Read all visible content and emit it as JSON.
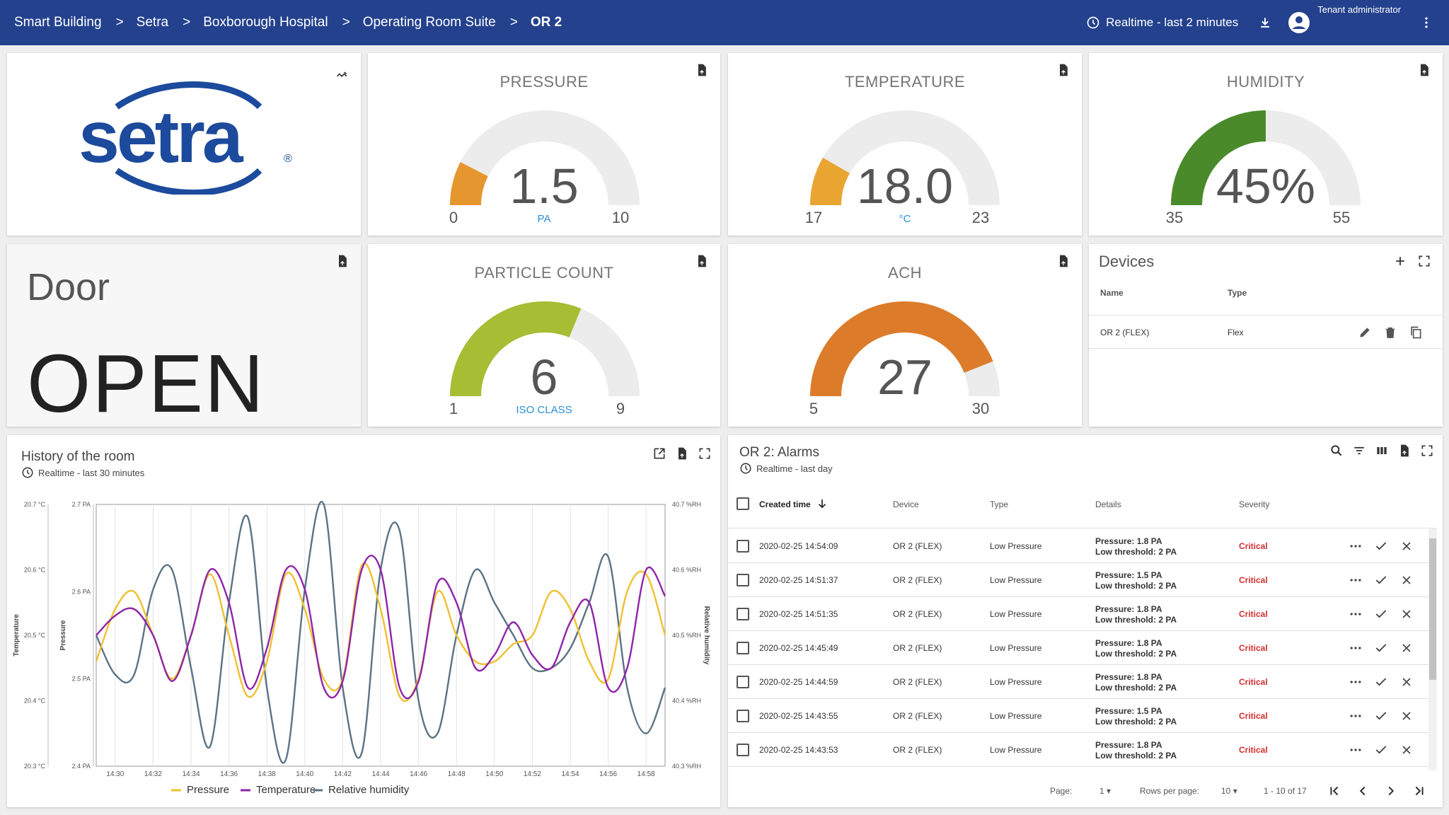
{
  "breadcrumbs": [
    "Smart Building",
    "Setra",
    "Boxborough Hospital",
    "Operating Room Suite",
    "OR 2"
  ],
  "topbar": {
    "realtime_label": "Realtime - last 2 minutes",
    "user_label": "Tenant administrator"
  },
  "logo": {
    "text": "setra",
    "mark": "®"
  },
  "gauges": {
    "pressure": {
      "title": "PRESSURE",
      "value": "1.5",
      "unit": "PA",
      "min": "0",
      "max": "10",
      "fraction": 0.15,
      "color": "#e6962e"
    },
    "temperature": {
      "title": "TEMPERATURE",
      "value": "18.0",
      "unit": "°C",
      "min": "17",
      "max": "23",
      "fraction": 0.167,
      "color": "#e9a532"
    },
    "humidity": {
      "title": "HUMIDITY",
      "value": "45%",
      "unit": "",
      "min": "35",
      "max": "55",
      "fraction": 0.5,
      "color": "#4a8a2a"
    },
    "particle": {
      "title": "PARTICLE COUNT",
      "value": "6",
      "unit": "ISO CLASS",
      "min": "1",
      "max": "9",
      "fraction": 0.625,
      "color": "#a7bd34"
    },
    "ach": {
      "title": "ACH",
      "value": "27",
      "unit": "",
      "min": "5",
      "max": "30",
      "fraction": 0.88,
      "color": "#dc7c2a"
    }
  },
  "door": {
    "label": "Door",
    "state": "OPEN"
  },
  "devices": {
    "title": "Devices",
    "col_name": "Name",
    "col_type": "Type",
    "rows": [
      {
        "name": "OR 2 (FLEX)",
        "type": "Flex"
      }
    ]
  },
  "history": {
    "title": "History of the room",
    "subtitle": "Realtime - last 30 minutes"
  },
  "chart_data": {
    "type": "line",
    "title": "History of the room",
    "x": [
      "14:29",
      "14:30",
      "14:31",
      "14:32",
      "14:33",
      "14:34",
      "14:35",
      "14:36",
      "14:37",
      "14:38",
      "14:39",
      "14:40",
      "14:41",
      "14:42",
      "14:43",
      "14:44",
      "14:45",
      "14:46",
      "14:47",
      "14:48",
      "14:49",
      "14:50",
      "14:51",
      "14:52",
      "14:53",
      "14:54",
      "14:55",
      "14:56",
      "14:57",
      "14:58",
      "14:59"
    ],
    "x_ticks": [
      "14:30",
      "14:32",
      "14:34",
      "14:36",
      "14:38",
      "14:40",
      "14:42",
      "14:44",
      "14:46",
      "14:48",
      "14:50",
      "14:52",
      "14:54",
      "14:56",
      "14:58"
    ],
    "series": [
      {
        "name": "Pressure",
        "axis": "Pressure",
        "color": "#f0c030",
        "values": [
          2.52,
          2.58,
          2.6,
          2.55,
          2.5,
          2.55,
          2.62,
          2.55,
          2.48,
          2.52,
          2.62,
          2.58,
          2.5,
          2.5,
          2.63,
          2.58,
          2.48,
          2.5,
          2.6,
          2.55,
          2.52,
          2.52,
          2.54,
          2.55,
          2.6,
          2.58,
          2.52,
          2.5,
          2.6,
          2.62,
          2.55
        ]
      },
      {
        "name": "Temperature",
        "axis": "Temperature",
        "color": "#8e24aa",
        "values": [
          20.5,
          20.53,
          20.54,
          20.5,
          20.43,
          20.5,
          20.6,
          20.55,
          20.42,
          20.48,
          20.6,
          20.57,
          20.42,
          20.43,
          20.6,
          20.6,
          20.42,
          20.43,
          20.58,
          20.55,
          20.45,
          20.47,
          20.52,
          20.47,
          20.45,
          20.52,
          20.55,
          20.42,
          20.45,
          20.6,
          20.56
        ]
      },
      {
        "name": "Relative humidity",
        "axis": "Relative humidity",
        "color": "#5b7384",
        "values": [
          40.5,
          40.44,
          40.44,
          40.57,
          40.6,
          40.45,
          40.33,
          40.55,
          40.68,
          40.42,
          40.31,
          40.57,
          40.7,
          40.42,
          40.32,
          40.6,
          40.66,
          40.4,
          40.35,
          40.5,
          40.6,
          40.55,
          40.5,
          40.45,
          40.45,
          40.48,
          40.55,
          40.62,
          40.42,
          40.35,
          40.42
        ]
      }
    ],
    "ylim_left_temperature": [
      20.3,
      20.7
    ],
    "ylim_left_pressure": [
      2.4,
      2.7
    ],
    "ylim_right_humidity": [
      40.3,
      40.7
    ],
    "temperature_ticks": [
      "20.7 °C",
      "20.6 °C",
      "20.5 °C",
      "20.4 °C",
      "20.3 °C"
    ],
    "pressure_ticks": [
      "2.7 PA",
      "2.6 PA",
      "2.5 PA",
      "2.4 PA"
    ],
    "humidity_ticks": [
      "40.7 %RH",
      "40.6 %RH",
      "40.5 %RH",
      "40.4 %RH",
      "40.3 %RH"
    ],
    "ylabel_temperature": "Temperature",
    "ylabel_pressure": "Pressure",
    "ylabel_humidity": "Relative humidity",
    "legend": [
      "Pressure",
      "Temperature",
      "Relative humidity"
    ],
    "legend_position": "bottom"
  },
  "alarms": {
    "title": "OR 2: Alarms",
    "subtitle": "Realtime - last day",
    "headers": {
      "created": "Created time",
      "device": "Device",
      "type": "Type",
      "details": "Details",
      "severity": "Severity"
    },
    "rows": [
      {
        "time": "2020-02-25 14:54:09",
        "device": "OR 2 (FLEX)",
        "type": "Low Pressure",
        "detail1": "Pressure: 1.8 PA",
        "detail2": "Low threshold: 2 PA",
        "severity": "Critical"
      },
      {
        "time": "2020-02-25 14:51:37",
        "device": "OR 2 (FLEX)",
        "type": "Low Pressure",
        "detail1": "Pressure: 1.5 PA",
        "detail2": "Low threshold: 2 PA",
        "severity": "Critical"
      },
      {
        "time": "2020-02-25 14:51:35",
        "device": "OR 2 (FLEX)",
        "type": "Low Pressure",
        "detail1": "Pressure: 1.8 PA",
        "detail2": "Low threshold: 2 PA",
        "severity": "Critical"
      },
      {
        "time": "2020-02-25 14:45:49",
        "device": "OR 2 (FLEX)",
        "type": "Low Pressure",
        "detail1": "Pressure: 1.8 PA",
        "detail2": "Low threshold: 2 PA",
        "severity": "Critical"
      },
      {
        "time": "2020-02-25 14:44:59",
        "device": "OR 2 (FLEX)",
        "type": "Low Pressure",
        "detail1": "Pressure: 1.8 PA",
        "detail2": "Low threshold: 2 PA",
        "severity": "Critical"
      },
      {
        "time": "2020-02-25 14:43:55",
        "device": "OR 2 (FLEX)",
        "type": "Low Pressure",
        "detail1": "Pressure: 1.5 PA",
        "detail2": "Low threshold: 2 PA",
        "severity": "Critical"
      },
      {
        "time": "2020-02-25 14:43:53",
        "device": "OR 2 (FLEX)",
        "type": "Low Pressure",
        "detail1": "Pressure: 1.8 PA",
        "detail2": "Low threshold: 2 PA",
        "severity": "Critical"
      }
    ],
    "pagination": {
      "page_label": "Page:",
      "page": "1",
      "rows_label": "Rows per page:",
      "rows_per_page": "10",
      "range": "1 - 10 of 17"
    }
  }
}
